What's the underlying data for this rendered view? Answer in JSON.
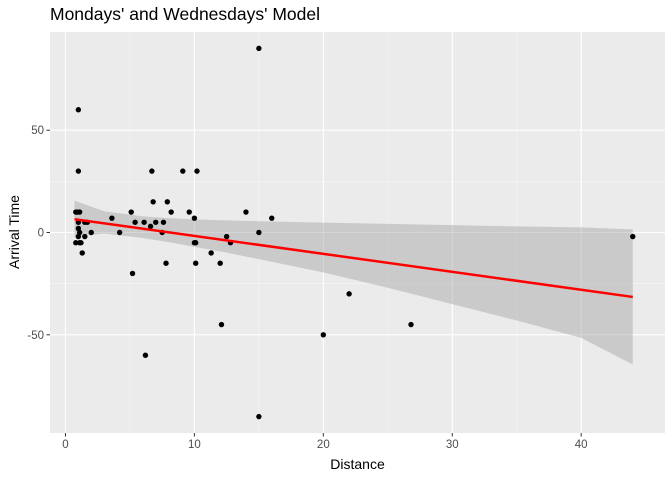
{
  "chart_data": {
    "type": "scatter",
    "title": "Mondays' and Wednesdays' Model",
    "xlabel": "Distance",
    "ylabel": "Arrival Time",
    "xlim": [
      -1.2,
      46.5
    ],
    "ylim": [
      -98,
      98
    ],
    "x_ticks": [
      0,
      10,
      20,
      30,
      40
    ],
    "y_ticks": [
      -50,
      0,
      50
    ],
    "grid": true,
    "legend": "none",
    "colors": {
      "panel": "#ebebeb",
      "grid_major": "#ffffff",
      "points": "#000000",
      "fit_line": "#ff0000",
      "confidence_band": "#999999"
    },
    "points": [
      [
        0.8,
        10
      ],
      [
        0.8,
        -5
      ],
      [
        0.9,
        10
      ],
      [
        1.0,
        60
      ],
      [
        1.0,
        30
      ],
      [
        1.0,
        5
      ],
      [
        1.0,
        2
      ],
      [
        1.0,
        -2
      ],
      [
        1.1,
        10
      ],
      [
        1.1,
        0
      ],
      [
        1.1,
        -5
      ],
      [
        1.2,
        -5
      ],
      [
        1.3,
        -10
      ],
      [
        1.5,
        -2
      ],
      [
        1.5,
        5
      ],
      [
        1.7,
        5
      ],
      [
        2.0,
        0
      ],
      [
        3.6,
        7
      ],
      [
        4.2,
        0
      ],
      [
        5.1,
        10
      ],
      [
        5.2,
        -20
      ],
      [
        5.4,
        5
      ],
      [
        6.1,
        5
      ],
      [
        6.2,
        -60
      ],
      [
        6.6,
        3
      ],
      [
        6.7,
        30
      ],
      [
        6.8,
        15
      ],
      [
        7.0,
        5
      ],
      [
        7.5,
        0
      ],
      [
        7.6,
        5
      ],
      [
        7.8,
        -15
      ],
      [
        7.9,
        15
      ],
      [
        8.2,
        10
      ],
      [
        9.1,
        30
      ],
      [
        9.6,
        10
      ],
      [
        10.0,
        7
      ],
      [
        10.0,
        -5
      ],
      [
        10.1,
        -5
      ],
      [
        10.1,
        -15
      ],
      [
        10.2,
        30
      ],
      [
        11.3,
        -10
      ],
      [
        12.0,
        -15
      ],
      [
        12.1,
        -45
      ],
      [
        12.5,
        -2
      ],
      [
        12.8,
        -5
      ],
      [
        14.0,
        10
      ],
      [
        15.0,
        90
      ],
      [
        15.0,
        0
      ],
      [
        15.0,
        -90
      ],
      [
        16.0,
        7
      ],
      [
        20.0,
        -50
      ],
      [
        22.0,
        -30
      ],
      [
        26.8,
        -45
      ],
      [
        44.0,
        -2
      ]
    ],
    "fit_line": {
      "x": [
        0.7,
        44.0
      ],
      "y": [
        6.5,
        -31.5
      ]
    },
    "confidence_band": {
      "x": [
        0.7,
        3,
        6,
        8,
        10,
        12,
        15,
        20,
        25,
        30,
        35,
        40,
        44.0
      ],
      "lower": [
        -2.0,
        -0.5,
        -2.7,
        -4.7,
        -7.0,
        -9.2,
        -13.0,
        -19.5,
        -27.0,
        -35.0,
        -43.0,
        -51.5,
        -64.5
      ],
      "upper": [
        15.5,
        10.4,
        7.9,
        7.0,
        6.4,
        6.0,
        5.5,
        4.8,
        4.2,
        3.6,
        3.0,
        2.5,
        1.5
      ]
    }
  }
}
